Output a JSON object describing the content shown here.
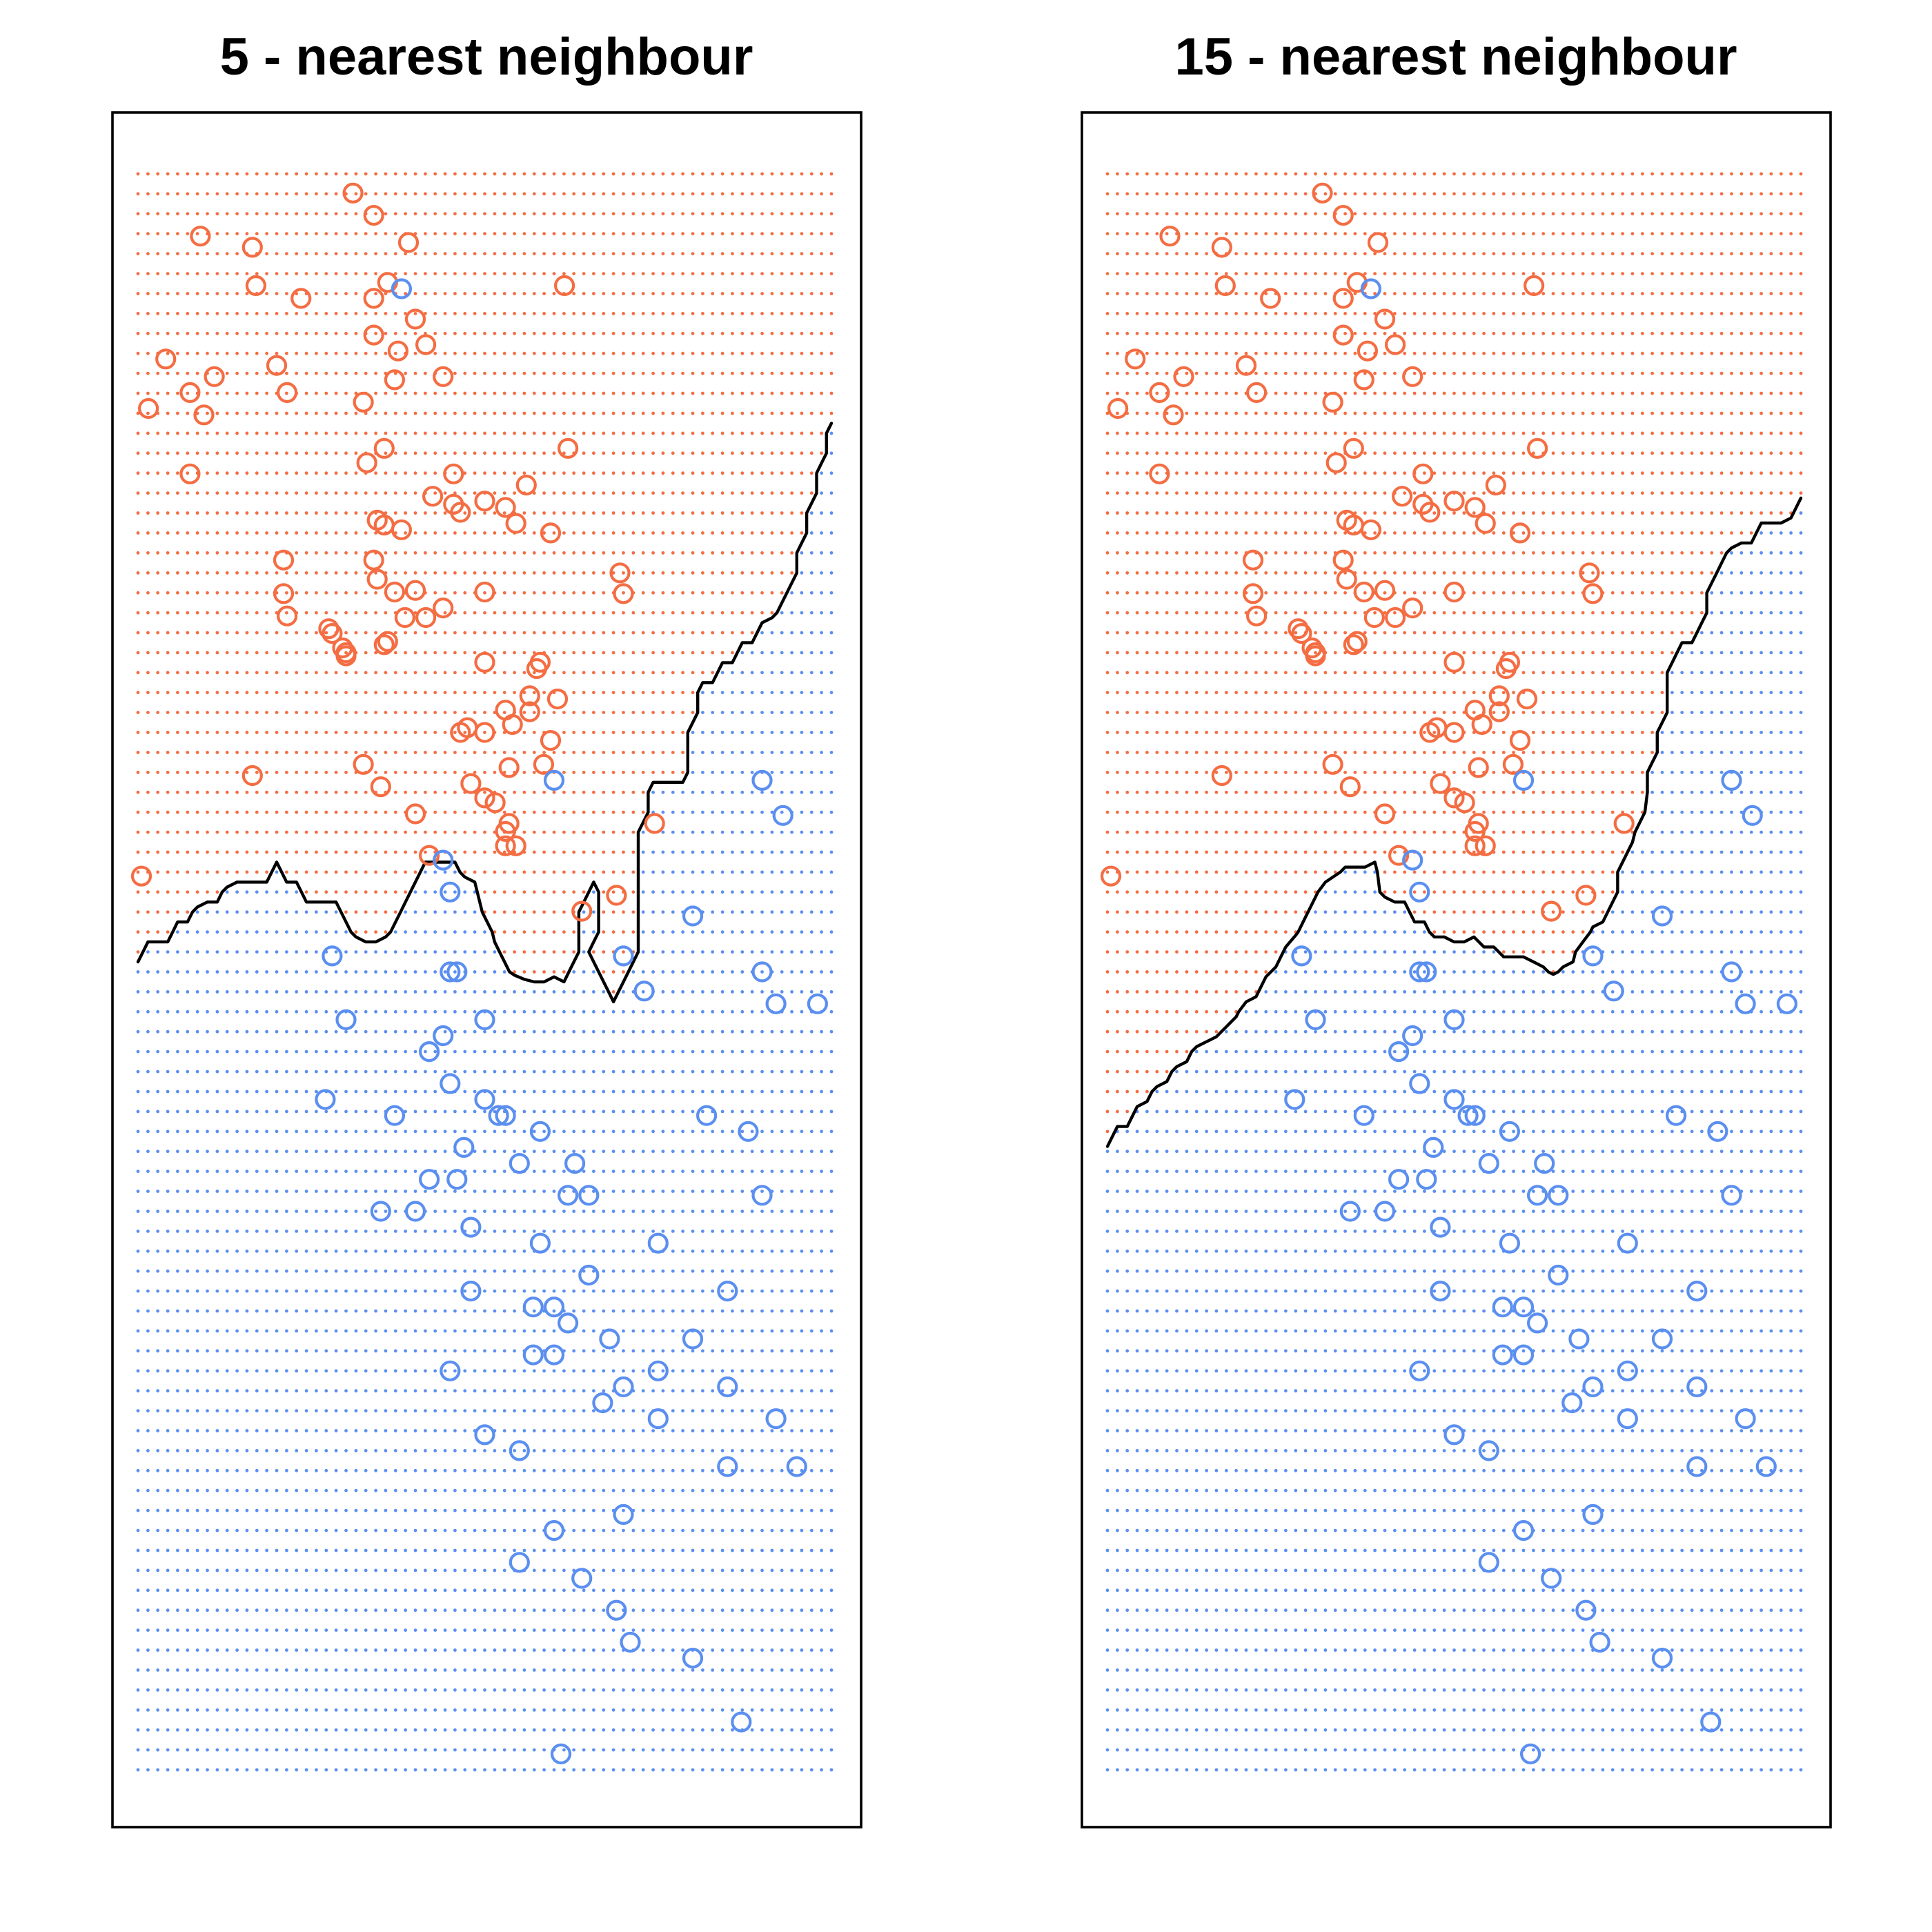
{
  "colors": {
    "class_orange": "#f46d43",
    "class_blue": "#5b8ff0",
    "boundary": "#000000"
  },
  "chart_data": [
    {
      "type": "scatter",
      "title": "5 - nearest neighbour",
      "k": 5,
      "xlabel": "",
      "ylabel": "",
      "axes_shown": false,
      "grid": "dotted class-region grid",
      "xlim": [
        0.0,
        1.0
      ],
      "ylim": [
        0.0,
        1.0
      ],
      "series": [
        {
          "color": "#f46d43",
          "points": [
            [
              0.31,
              0.988
            ],
            [
              0.34,
              0.974
            ],
            [
              0.09,
              0.961
            ],
            [
              0.165,
              0.954
            ],
            [
              0.39,
              0.957
            ],
            [
              0.36,
              0.932
            ],
            [
              0.615,
              0.93
            ],
            [
              0.17,
              0.93
            ],
            [
              0.235,
              0.922
            ],
            [
              0.34,
              0.922
            ],
            [
              0.4,
              0.909
            ],
            [
              0.34,
              0.899
            ],
            [
              0.415,
              0.893
            ],
            [
              0.04,
              0.884
            ],
            [
              0.2,
              0.88
            ],
            [
              0.375,
              0.889
            ],
            [
              0.11,
              0.873
            ],
            [
              0.44,
              0.873
            ],
            [
              0.37,
              0.871
            ],
            [
              0.075,
              0.863
            ],
            [
              0.215,
              0.863
            ],
            [
              0.325,
              0.857
            ],
            [
              0.015,
              0.853
            ],
            [
              0.095,
              0.849
            ],
            [
              0.355,
              0.828
            ],
            [
              0.62,
              0.828
            ],
            [
              0.075,
              0.812
            ],
            [
              0.33,
              0.819
            ],
            [
              0.455,
              0.812
            ],
            [
              0.56,
              0.805
            ],
            [
              0.455,
              0.793
            ],
            [
              0.465,
              0.788
            ],
            [
              0.425,
              0.798
            ],
            [
              0.5,
              0.795
            ],
            [
              0.53,
              0.791
            ],
            [
              0.545,
              0.781
            ],
            [
              0.595,
              0.775
            ],
            [
              0.345,
              0.783
            ],
            [
              0.355,
              0.78
            ],
            [
              0.38,
              0.777
            ],
            [
              0.21,
              0.758
            ],
            [
              0.34,
              0.758
            ],
            [
              0.345,
              0.746
            ],
            [
              0.695,
              0.75
            ],
            [
              0.37,
              0.738
            ],
            [
              0.4,
              0.739
            ],
            [
              0.5,
              0.738
            ],
            [
              0.21,
              0.737
            ],
            [
              0.215,
              0.723
            ],
            [
              0.7,
              0.737
            ],
            [
              0.385,
              0.722
            ],
            [
              0.44,
              0.728
            ],
            [
              0.415,
              0.722
            ],
            [
              0.275,
              0.715
            ],
            [
              0.28,
              0.712
            ],
            [
              0.295,
              0.703
            ],
            [
              0.3,
              0.7
            ],
            [
              0.3,
              0.698
            ],
            [
              0.355,
              0.705
            ],
            [
              0.36,
              0.707
            ],
            [
              0.5,
              0.694
            ],
            [
              0.58,
              0.694
            ],
            [
              0.575,
              0.69
            ],
            [
              0.605,
              0.671
            ],
            [
              0.565,
              0.673
            ],
            [
              0.565,
              0.663
            ],
            [
              0.53,
              0.664
            ],
            [
              0.475,
              0.653
            ],
            [
              0.465,
              0.65
            ],
            [
              0.5,
              0.65
            ],
            [
              0.54,
              0.655
            ],
            [
              0.325,
              0.63
            ],
            [
              0.595,
              0.645
            ],
            [
              0.165,
              0.623
            ],
            [
              0.585,
              0.63
            ],
            [
              0.535,
              0.628
            ],
            [
              0.35,
              0.616
            ],
            [
              0.48,
              0.618
            ],
            [
              0.5,
              0.609
            ],
            [
              0.515,
              0.606
            ],
            [
              0.4,
              0.599
            ],
            [
              0.53,
              0.588
            ],
            [
              0.005,
              0.56
            ],
            [
              0.64,
              0.538
            ],
            [
              0.69,
              0.548
            ],
            [
              0.42,
              0.573
            ],
            [
              0.535,
              0.593
            ],
            [
              0.53,
              0.579
            ],
            [
              0.545,
              0.579
            ],
            [
              0.745,
              0.593
            ]
          ]
        },
        {
          "color": "#5b8ff0",
          "points": [
            [
              0.38,
              0.928
            ],
            [
              0.6,
              0.62
            ],
            [
              0.8,
              0.535
            ],
            [
              0.9,
              0.62
            ],
            [
              0.93,
              0.598
            ],
            [
              0.7,
              0.51
            ],
            [
              0.73,
              0.488
            ],
            [
              0.9,
              0.36
            ],
            [
              0.6,
              0.26
            ],
            [
              0.8,
              0.07
            ],
            [
              0.5,
              0.42
            ],
            [
              0.58,
              0.4
            ],
            [
              0.48,
              0.3
            ],
            [
              0.45,
              0.5
            ],
            [
              0.42,
              0.45
            ],
            [
              0.45,
              0.55
            ],
            [
              0.4,
              0.35
            ],
            [
              0.46,
              0.37
            ],
            [
              0.48,
              0.34
            ],
            [
              0.55,
              0.2
            ],
            [
              0.65,
              0.36
            ],
            [
              0.85,
              0.3
            ],
            [
              0.92,
              0.22
            ],
            [
              0.35,
              0.35
            ],
            [
              0.42,
              0.37
            ],
            [
              0.45,
              0.25
            ],
            [
              0.7,
              0.16
            ],
            [
              0.75,
              0.22
            ],
            [
              0.75,
              0.25
            ],
            [
              0.8,
              0.27
            ],
            [
              0.85,
              0.24
            ],
            [
              0.85,
              0.19
            ],
            [
              0.67,
              0.23
            ],
            [
              0.95,
              0.19
            ],
            [
              0.5,
              0.21
            ],
            [
              0.62,
              0.36
            ],
            [
              0.65,
              0.31
            ],
            [
              0.68,
              0.27
            ],
            [
              0.7,
              0.24
            ],
            [
              0.57,
              0.29
            ],
            [
              0.63,
              0.38
            ],
            [
              0.55,
              0.13
            ],
            [
              0.6,
              0.15
            ],
            [
              0.64,
              0.12
            ],
            [
              0.69,
              0.1
            ],
            [
              0.71,
              0.08
            ],
            [
              0.61,
              0.01
            ],
            [
              0.87,
              0.03
            ],
            [
              0.37,
              0.41
            ],
            [
              0.44,
              0.57
            ],
            [
              0.44,
              0.46
            ],
            [
              0.45,
              0.43
            ],
            [
              0.47,
              0.39
            ],
            [
              0.52,
              0.41
            ],
            [
              0.53,
              0.41
            ],
            [
              0.55,
              0.38
            ],
            [
              0.58,
              0.33
            ],
            [
              0.62,
              0.28
            ],
            [
              0.6,
              0.29
            ],
            [
              0.57,
              0.26
            ],
            [
              0.9,
              0.5
            ],
            [
              0.92,
              0.48
            ],
            [
              0.88,
              0.4
            ],
            [
              0.98,
              0.48
            ],
            [
              0.27,
              0.42
            ],
            [
              0.75,
              0.33
            ],
            [
              0.3,
              0.47
            ],
            [
              0.28,
              0.51
            ],
            [
              0.46,
              0.5
            ],
            [
              0.5,
              0.47
            ],
            [
              0.82,
              0.41
            ]
          ]
        }
      ]
    },
    {
      "type": "scatter",
      "title": "15 - nearest neighbour",
      "k": 15,
      "xlabel": "",
      "ylabel": "",
      "axes_shown": false,
      "grid": "dotted class-region grid",
      "xlim": [
        0.0,
        1.0
      ],
      "ylim": [
        0.0,
        1.0
      ],
      "series": [
        {
          "color": "#f46d43",
          "points": []
        },
        {
          "color": "#5b8ff0",
          "points": []
        }
      ]
    }
  ]
}
